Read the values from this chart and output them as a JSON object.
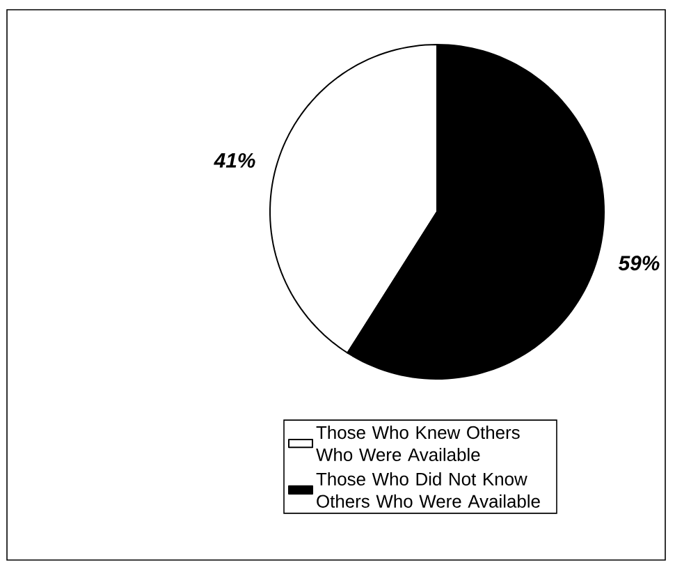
{
  "chart_data": {
    "type": "pie",
    "categories": [
      "Those Who Knew Others Who Were Available",
      "Those Who Did Not Know Others Who Were Available"
    ],
    "values": [
      41,
      59
    ],
    "colors": [
      "#ffffff",
      "#000000"
    ],
    "value_labels": [
      "41%",
      "59%"
    ],
    "legend": "bottom"
  }
}
